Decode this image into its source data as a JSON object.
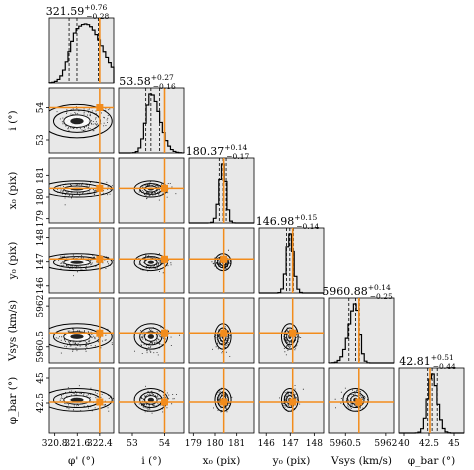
{
  "chart_data": {
    "type": "corner",
    "colors": {
      "truth": "#f28c1c",
      "panel_bg": "#e8e8e8",
      "contour": "#000000",
      "hist": "#000000",
      "points": "#000000"
    },
    "parameters": [
      {
        "id": "phi_prime",
        "label": "φ' (°)",
        "title_value": "321.59",
        "title_plus": "+0.76",
        "title_minus": "−0.28",
        "median": 321.59,
        "plus": 0.76,
        "minus": 0.28,
        "truth": 322.4,
        "range": [
          320.6,
          322.9
        ],
        "xticks": [
          320.8,
          321.6,
          322.4
        ],
        "xtick_labels": [
          "320.8",
          "321.6",
          "322.4"
        ]
      },
      {
        "id": "i",
        "label": "i (°)",
        "title_value": "53.58",
        "title_plus": "+0.27",
        "title_minus": "−0.16",
        "median": 53.58,
        "plus": 0.27,
        "minus": 0.16,
        "truth": 54.0,
        "range": [
          52.6,
          54.6
        ],
        "xticks": [
          53,
          54
        ],
        "xtick_labels": [
          "53",
          "54"
        ]
      },
      {
        "id": "x0",
        "label": "x₀ (pix)",
        "title_value": "180.37",
        "title_plus": "+0.14",
        "title_minus": "−0.17",
        "median": 180.37,
        "plus": 0.14,
        "minus": 0.17,
        "truth": 180.4,
        "range": [
          178.8,
          181.8
        ],
        "xticks": [
          179,
          180,
          181
        ],
        "xtick_labels": [
          "179",
          "180",
          "181"
        ]
      },
      {
        "id": "y0",
        "label": "y₀ (pix)",
        "title_value": "146.98",
        "title_plus": "+0.15",
        "title_minus": "−0.14",
        "median": 146.98,
        "plus": 0.15,
        "minus": 0.14,
        "truth": 147.1,
        "range": [
          145.7,
          148.4
        ],
        "xticks": [
          146,
          147,
          148
        ],
        "xtick_labels": [
          "146",
          "147",
          "148"
        ]
      },
      {
        "id": "vsys",
        "label": "Vsys (km/s)",
        "title_value": "5960.88",
        "title_plus": "+0.14",
        "title_minus": "−0.25",
        "median": 5960.88,
        "plus": 0.14,
        "minus": 0.25,
        "truth": 5961.0,
        "range": [
          5959.9,
          5962.3
        ],
        "xticks": [
          5960.5,
          5962
        ],
        "xtick_labels": [
          "5960.5",
          "5962"
        ]
      },
      {
        "id": "phi_bar",
        "label": "φ_bar (°)",
        "title_value": "42.81",
        "title_plus": "+0.51",
        "title_minus": "−0.44",
        "median": 42.81,
        "plus": 0.51,
        "minus": 0.44,
        "truth": 42.6,
        "range": [
          39.5,
          46.0
        ],
        "xticks": [
          40,
          42.5,
          45
        ],
        "xtick_labels": [
          "40",
          "42.5",
          "45"
        ]
      }
    ],
    "y_axis_labels": [
      "i (°)",
      "x₀ (pix)",
      "y₀ (pix)",
      "Vsys (km/s)",
      "φ_bar (°)"
    ],
    "yticks": [
      {
        "values": [
          53,
          54
        ],
        "labels": [
          "53",
          "54"
        ]
      },
      {
        "values": [
          179,
          180,
          181
        ],
        "labels": [
          "179",
          "180",
          "181"
        ]
      },
      {
        "values": [
          146,
          147,
          148
        ],
        "labels": [
          "146",
          "147",
          "148"
        ]
      },
      {
        "values": [
          5960.5,
          5962
        ],
        "labels": [
          "5960.5",
          "5962"
        ]
      },
      {
        "values": [
          42.5,
          45
        ],
        "labels": [
          "42.5",
          "45"
        ]
      }
    ]
  }
}
